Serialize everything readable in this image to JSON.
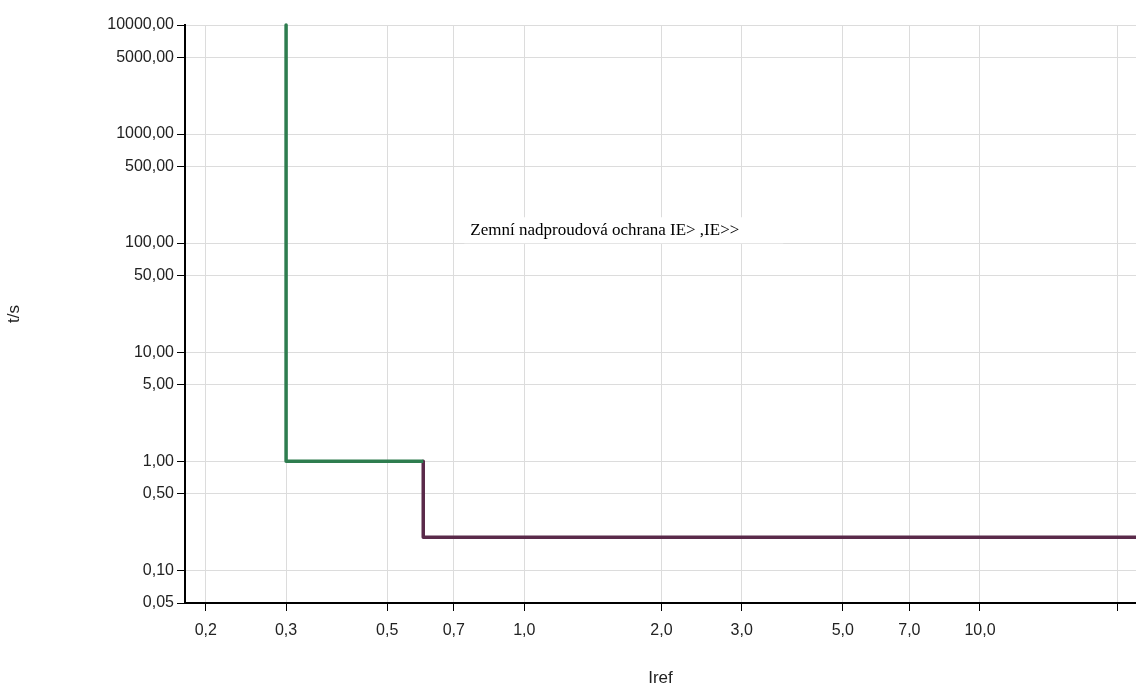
{
  "chart_data": {
    "type": "line",
    "xlabel": "Iref",
    "ylabel": "t/s",
    "annotations": [
      "Zemní nadproudová ochrana IE> ,IE>>"
    ],
    "series": [
      {
        "color": "#2e7d4f",
        "x": [
          0.3,
          0.3,
          0.6
        ],
        "values": [
          10000,
          1,
          1
        ]
      },
      {
        "color": "#5a2a4a",
        "x": [
          0.6,
          0.6,
          22
        ],
        "values": [
          1,
          0.2,
          0.2
        ]
      }
    ],
    "log": "xy",
    "xlim": [
      0.18,
      22
    ],
    "ylim": [
      0.05,
      10000
    ],
    "xticks": [
      {
        "value": 0.2,
        "label": "0,2"
      },
      {
        "value": 0.3,
        "label": "0,3"
      },
      {
        "value": 0.5,
        "label": "0,5"
      },
      {
        "value": 0.7,
        "label": "0,7"
      },
      {
        "value": 1,
        "label": "1,0"
      },
      {
        "value": 2,
        "label": "2,0"
      },
      {
        "value": 3,
        "label": "3,0"
      },
      {
        "value": 5,
        "label": "5,0"
      },
      {
        "value": 7,
        "label": "7,0"
      },
      {
        "value": 10,
        "label": "10,0"
      },
      {
        "value": 20,
        "label": null
      }
    ],
    "yticks": [
      {
        "value": 0.05,
        "label": "0,05"
      },
      {
        "value": 0.1,
        "label": "0,10"
      },
      {
        "value": 0.5,
        "label": "0,50"
      },
      {
        "value": 1,
        "label": "1,00"
      },
      {
        "value": 5,
        "label": "5,00"
      },
      {
        "value": 10,
        "label": "10,00"
      },
      {
        "value": 50,
        "label": "50,00"
      },
      {
        "value": 100,
        "label": "100,00"
      },
      {
        "value": 500,
        "label": "500,00"
      },
      {
        "value": 1000,
        "label": "1000,00"
      },
      {
        "value": 5000,
        "label": "5000,00"
      },
      {
        "value": 10000,
        "label": "10000,00"
      }
    ],
    "grid": true,
    "legend": false,
    "marker": "none",
    "line_style": "solid"
  }
}
